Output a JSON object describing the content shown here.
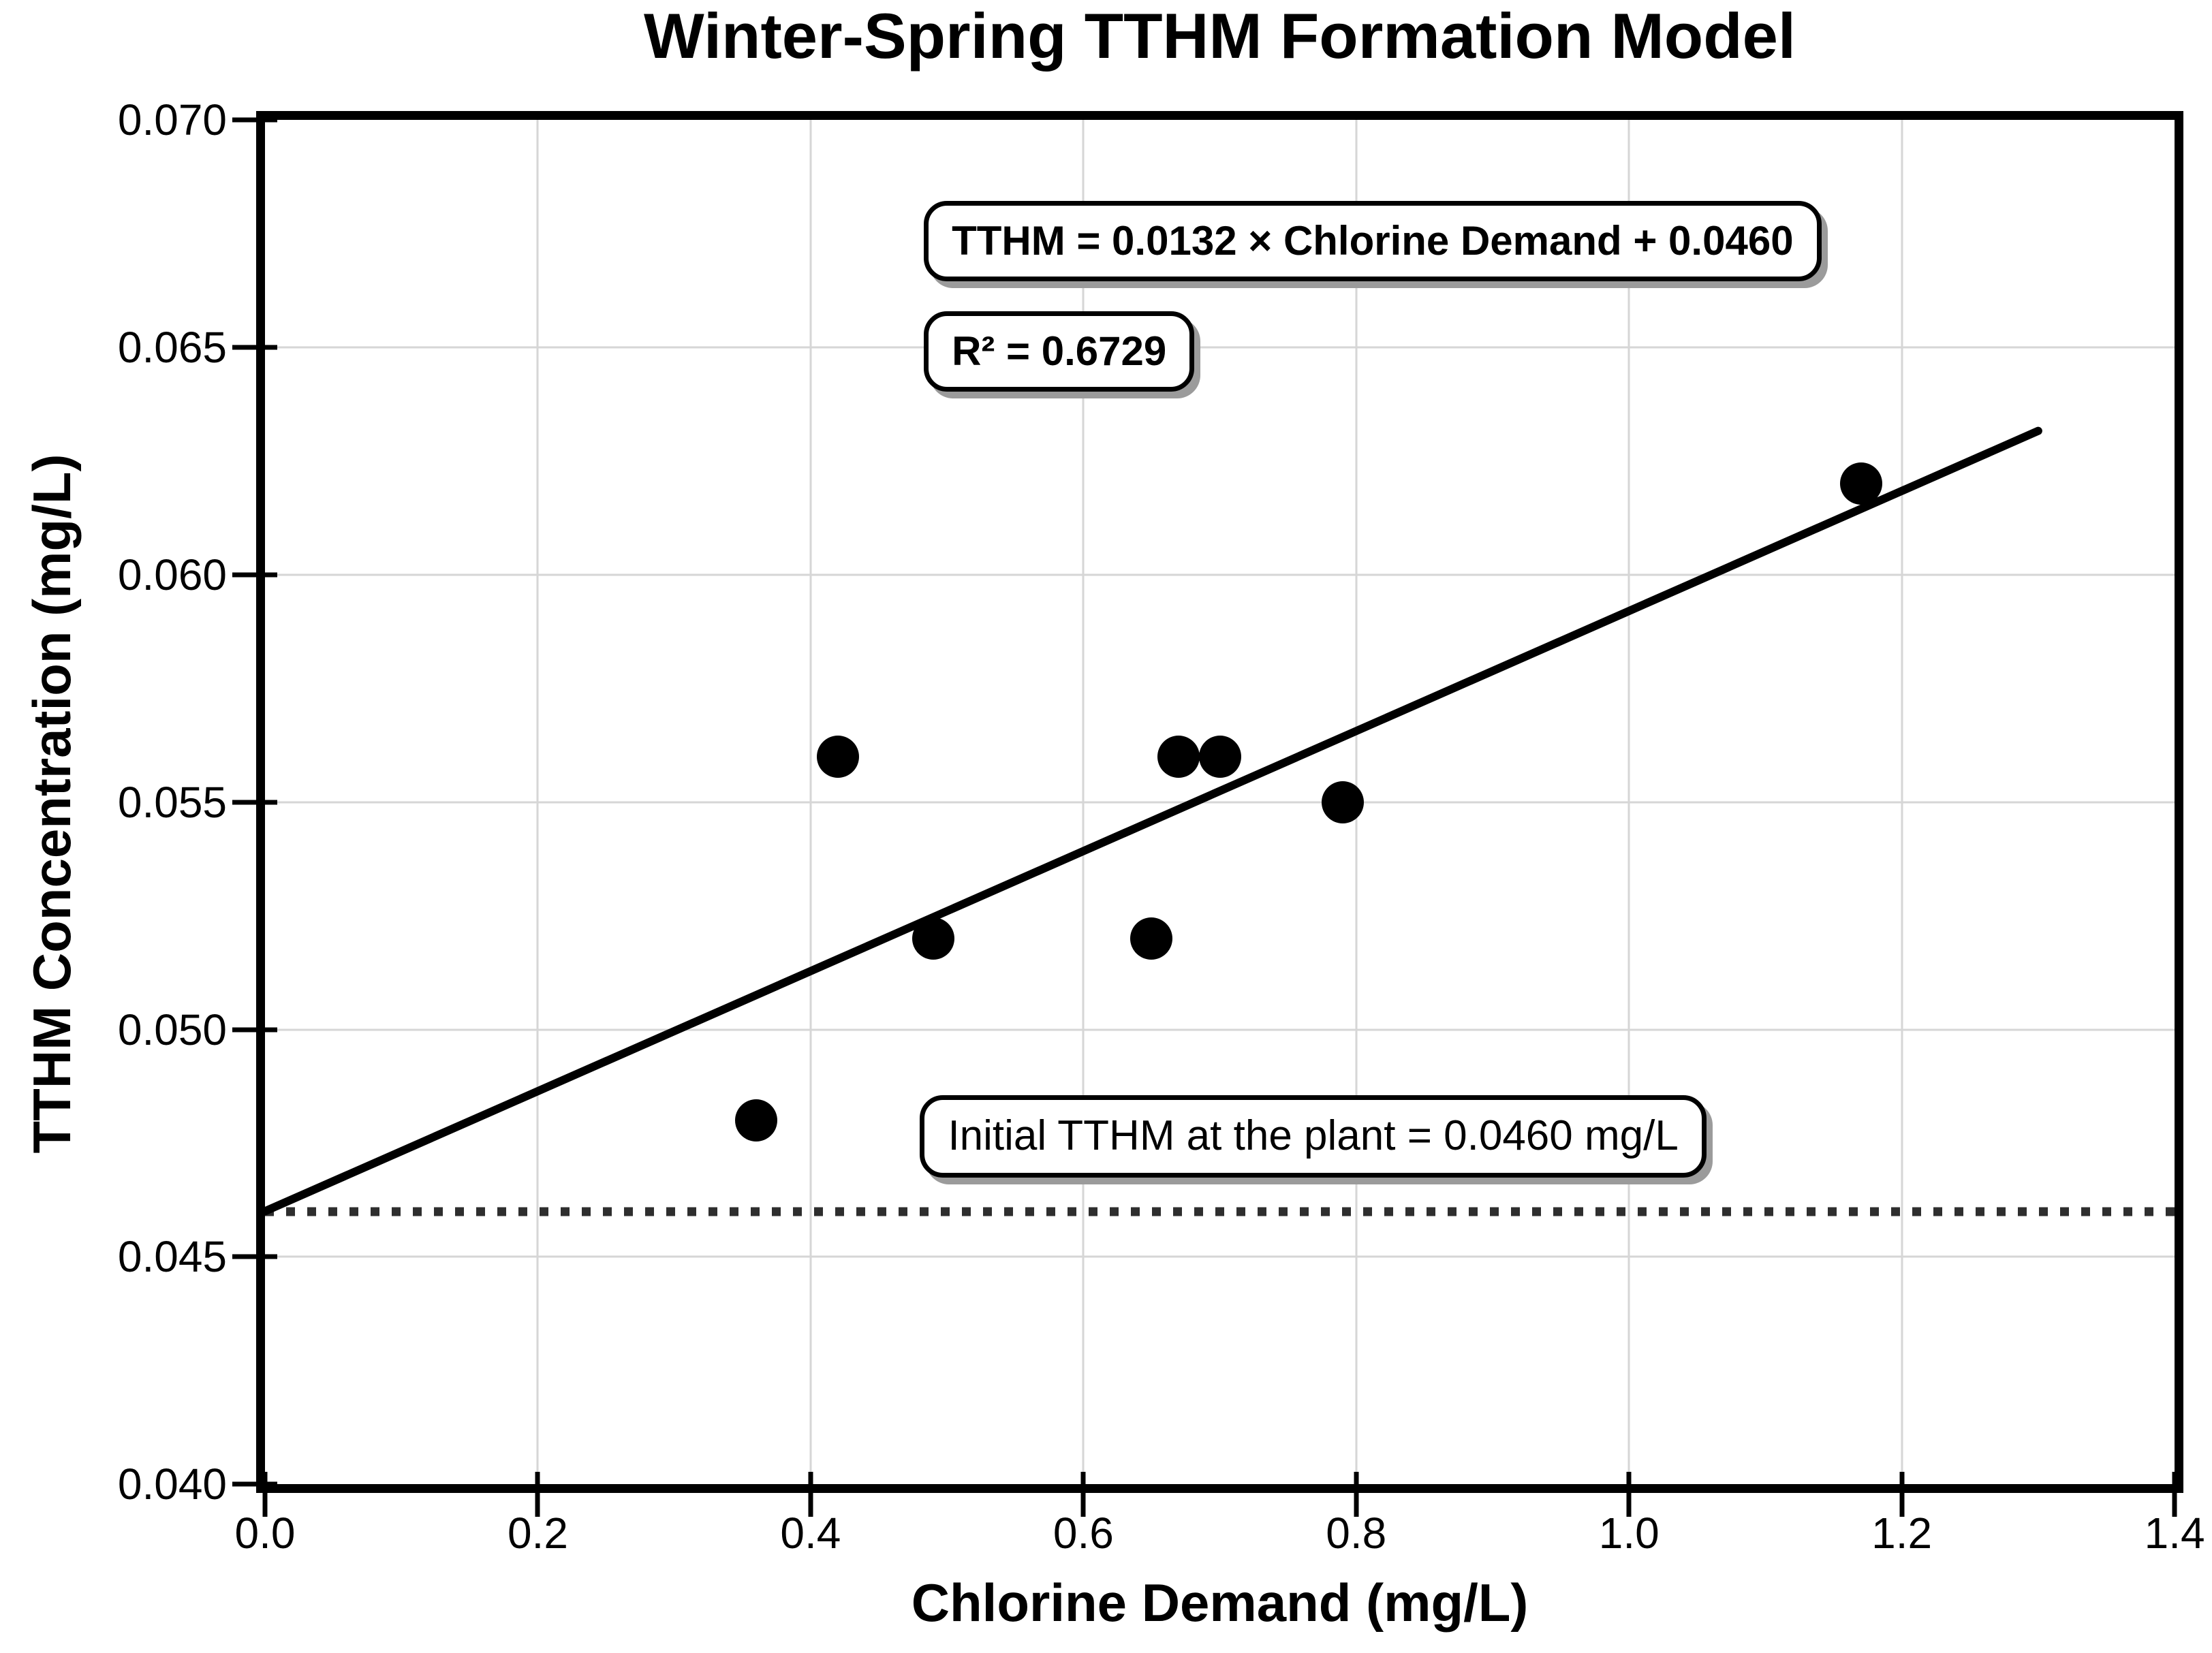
{
  "chart_data": {
    "type": "scatter",
    "title": "Winter-Spring TTHM Formation Model",
    "xlabel": "Chlorine Demand (mg/L)",
    "ylabel": "TTHM Concentration (mg/L)",
    "xlim": [
      0.0,
      1.4
    ],
    "ylim": [
      0.04,
      0.07
    ],
    "xticks": [
      "0.0",
      "0.2",
      "0.4",
      "0.6",
      "0.8",
      "1.0",
      "1.2",
      "1.4"
    ],
    "yticks": [
      "0.040",
      "0.045",
      "0.050",
      "0.055",
      "0.060",
      "0.065",
      "0.070"
    ],
    "grid": true,
    "legend": "none",
    "points": [
      {
        "x": 0.36,
        "y": 0.048
      },
      {
        "x": 0.42,
        "y": 0.056
      },
      {
        "x": 0.49,
        "y": 0.052
      },
      {
        "x": 0.65,
        "y": 0.052
      },
      {
        "x": 0.67,
        "y": 0.056
      },
      {
        "x": 0.7,
        "y": 0.056
      },
      {
        "x": 0.79,
        "y": 0.055
      },
      {
        "x": 1.17,
        "y": 0.062
      }
    ],
    "trendline": {
      "slope": 0.0132,
      "intercept": 0.046,
      "x_start": 0.0,
      "x_end": 1.3,
      "equation_label": "TTHM = 0.0132 × Chlorine Demand + 0.0460",
      "r2_label": "R² = 0.6729"
    },
    "baseline": {
      "y": 0.046,
      "label": "Initial TTHM at the plant = 0.0460 mg/L"
    },
    "colors": {
      "marker": "#000000",
      "trend_line": "#000000",
      "baseline_dots": "#2e2e2e",
      "gridline": "#d6d6d6",
      "spine": "#000000",
      "background": "#ffffff"
    }
  }
}
